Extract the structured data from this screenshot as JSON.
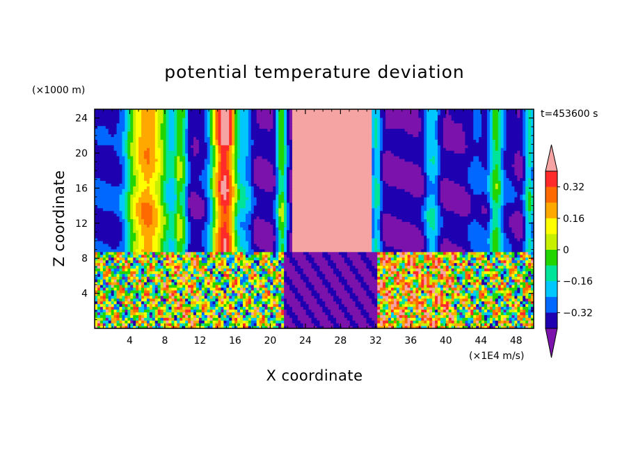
{
  "chart_data": {
    "type": "heatmap",
    "title": "potential temperature deviation",
    "xlabel": "X coordinate",
    "ylabel": "Z coordinate",
    "x_unit": "(×1E4 m/s)",
    "y_unit": "(×1000 m)",
    "time_label": "t=453600 s",
    "xlim": [
      0,
      50
    ],
    "ylim": [
      0,
      25
    ],
    "x_ticks": [
      4,
      8,
      12,
      16,
      20,
      24,
      28,
      32,
      36,
      40,
      44,
      48
    ],
    "y_ticks": [
      4,
      8,
      12,
      16,
      20,
      24
    ],
    "x_tick_labels": [
      "4",
      "8",
      "12",
      "16",
      "20",
      "24",
      "28",
      "32",
      "36",
      "40",
      "44",
      "48"
    ],
    "y_tick_labels": [
      "4",
      "8",
      "12",
      "16",
      "20",
      "24"
    ],
    "colorbar": {
      "levels": [
        -0.4,
        -0.32,
        -0.24,
        -0.16,
        -0.08,
        0,
        0.08,
        0.16,
        0.24,
        0.32,
        0.4
      ],
      "labels": [
        "0.32",
        "0.16",
        "0",
        "−0.16",
        "−0.32"
      ],
      "label_values": [
        0.32,
        0.16,
        0,
        -0.16,
        -0.32
      ],
      "colors": [
        "#7a12ab",
        "#1f00b0",
        "#0068ff",
        "#00c8ff",
        "#00e49a",
        "#22d400",
        "#c6f000",
        "#ffff00",
        "#ffa800",
        "#ff6a00",
        "#ff2a2a",
        "#f5a3a3"
      ]
    }
  }
}
